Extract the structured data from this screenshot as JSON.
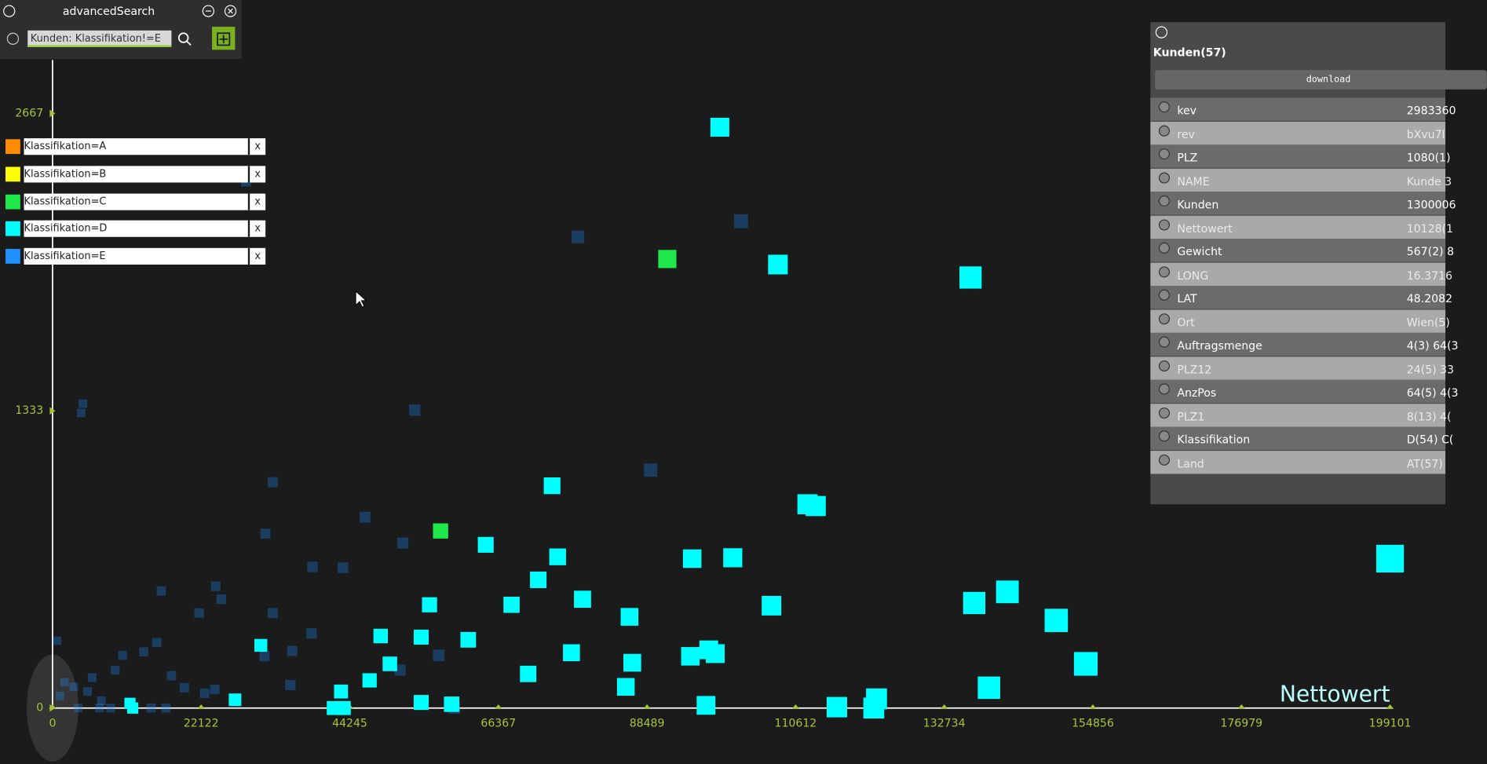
{
  "window": {
    "title": "advancedSearch",
    "search_query": "Kunden: Klassifikation!=E",
    "remove_button": "x"
  },
  "chart_data": {
    "type": "scatter",
    "x_label": "Nettowert",
    "xlim": [
      0,
      199101
    ],
    "ylim": [
      0,
      2667
    ],
    "xticks": [
      0,
      22122,
      44245,
      66367,
      88489,
      110612,
      132734,
      154856,
      176979,
      199101
    ],
    "yticks": [
      0,
      1333,
      2667
    ],
    "series": [
      {
        "name": "Klassifikation=A",
        "color": "#ff8c00",
        "x": [],
        "values": []
      },
      {
        "name": "Klassifikation=B",
        "color": "#ffff00",
        "x": [],
        "values": []
      },
      {
        "name": "Klassifikation=C",
        "color": "#1ee84a",
        "x": [
          91512,
          57761
        ],
        "values": [
          2014,
          794
        ]
      },
      {
        "name": "Klassifikation=D",
        "color": "#00ffff",
        "x": [
          99333,
          107976,
          136651,
          74362,
          112367,
          113602,
          199101,
          64484,
          75186,
          95217,
          101254,
          72304,
          78890,
          56115,
          68326,
          107016,
          137200,
          142139,
          149411,
          85887,
          48843,
          54880,
          61877,
          31007,
          77244,
          94942,
          97686,
          98647,
          86299,
          153801,
          50215,
          70795,
          47197,
          85338,
          139395,
          42944,
          27166,
          54880,
          59408,
          97275,
          116757,
          122657,
          122245,
          41846,
          43355,
          11525,
          11936
        ],
        "values": [
          2605,
          1989,
          1931,
          997,
          914,
          906,
          670,
          732,
          678,
          670,
          674,
          575,
          488,
          463,
          463,
          459,
          471,
          521,
          393,
          409,
          323,
          318,
          306,
          281,
          248,
          232,
          261,
          244,
          203,
          198,
          198,
          153,
          124,
          95,
          91,
          74,
          37,
          25,
          17,
          12,
          4,
          41,
          0,
          0,
          0,
          21,
          0
        ]
      },
      {
        "name": "Klassifikation=E",
        "color": "#1e90ff",
        "dimmed": true,
        "x": [
          102488,
          78204,
          89043,
          53920,
          4528,
          4253,
          32791,
          46511,
          31693,
          52136,
          38690,
          43218,
          16190,
          24284,
          25108,
          32791,
          21815,
          38553,
          35672,
          31556,
          57487,
          51724,
          15504,
          13583,
          10427,
          9330,
          35398,
          17699,
          19620,
          24147,
          22638,
          14680,
          16876,
          59819,
          28812,
          686,
          6997,
          1784,
          1098,
          3156,
          5214,
          7272,
          3842,
          5900,
          8644
        ],
        "values": [
          2183,
          2113,
          1067,
          1336,
          1365,
          1323,
          1013,
          856,
          782,
          740,
          633,
          629,
          525,
          546,
          488,
          426,
          426,
          335,
          256,
          232,
          236,
          170,
          294,
          252,
          236,
          170,
          103,
          145,
          91,
          83,
          66,
          0,
          0,
          0,
          2361,
          302,
          0,
          116,
          54,
          95,
          74,
          33,
          0,
          136,
          0
        ]
      }
    ]
  },
  "panel": {
    "title": "Kunden(57)",
    "download": "download",
    "rows": [
      [
        "kev",
        "2983360"
      ],
      [
        "rev",
        "bXvu7l"
      ],
      [
        "PLZ",
        "1080(1)"
      ],
      [
        "NAME",
        "Kunde 3"
      ],
      [
        "Kunden",
        "1300006"
      ],
      [
        "Nettowert",
        "10128(1"
      ],
      [
        "Gewicht",
        "567(2) 8"
      ],
      [
        "LONG",
        "16.3716"
      ],
      [
        "LAT",
        "48.2082"
      ],
      [
        "Ort",
        "Wien(5)"
      ],
      [
        "Auftragsmenge",
        "4(3) 64(3"
      ],
      [
        "PLZ12",
        "24(5) 33"
      ],
      [
        "AnzPos",
        "64(5) 4(3"
      ],
      [
        "PLZ1",
        "8(13) 4("
      ],
      [
        "Klassifikation",
        "D(54) C("
      ],
      [
        "Land",
        "AT(57)"
      ]
    ]
  }
}
